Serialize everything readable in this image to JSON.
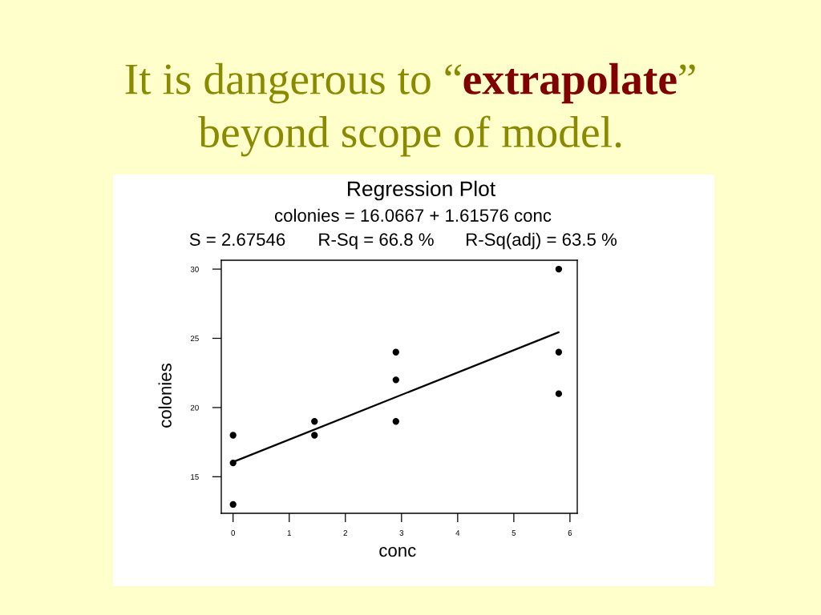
{
  "chart_data": {
    "type": "scatter",
    "title": "It is dangerous to “extrapolate”\nbeyond scope of model.",
    "subtitle": "Regression Plot",
    "annotations": [
      "colonies = 16.0667 + 1.61576 conc",
      "S = 2.67546",
      "R-Sq = 66.8 %",
      "R-Sq(adj) = 63.5 %"
    ],
    "xlabel": "conc",
    "ylabel": "colonies",
    "series": [
      {
        "color": "#000000",
        "marker": "circle",
        "x": [
          0,
          0,
          0,
          1.45,
          1.45,
          2.9,
          2.9,
          2.9,
          5.8,
          5.8,
          5.8
        ],
        "values": [
          13,
          16,
          18,
          18,
          19,
          19,
          22,
          24,
          21,
          24,
          30
        ]
      },
      {
        "type": "line",
        "color": "#000000",
        "marker": "none",
        "line_style": "solid",
        "x": [
          0,
          5.8
        ],
        "values": [
          16.07,
          25.44
        ]
      }
    ],
    "xlim": [
      -0.21,
      6.13
    ],
    "xticks": [
      0,
      1,
      2,
      3,
      4,
      5,
      6
    ],
    "ylim": [
      12.36,
      30.64
    ],
    "yticks": [
      15,
      20,
      25,
      30
    ],
    "grid": false,
    "legend": false
  }
}
